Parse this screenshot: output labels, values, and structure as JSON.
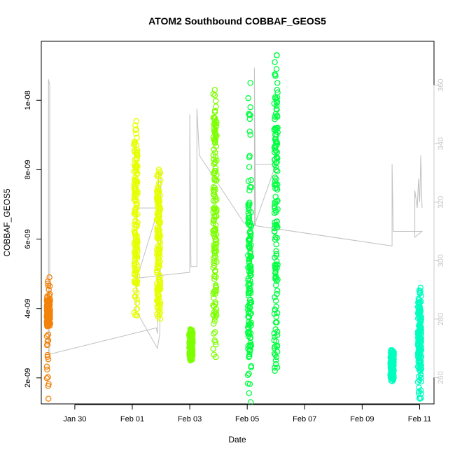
{
  "chart_data": {
    "type": "scatter",
    "title": "ATOM2 Southbound COBBAF_GEOS5",
    "xlabel": "Date",
    "ylabel": "COBBAF_GEOS5",
    "x_unit": "days",
    "x_ticks": [
      {
        "x": "2017-01-30",
        "label": "Jan 30"
      },
      {
        "x": "2017-02-01",
        "label": "Feb 01"
      },
      {
        "x": "2017-02-03",
        "label": "Feb 03"
      },
      {
        "x": "2017-02-05",
        "label": "Feb 05"
      },
      {
        "x": "2017-02-07",
        "label": "Feb 07"
      },
      {
        "x": "2017-02-09",
        "label": "Feb 09"
      },
      {
        "x": "2017-02-11",
        "label": "Feb 11"
      }
    ],
    "xlim": [
      "2017-01-28 20:00",
      "2017-02-11 12:00"
    ],
    "ylim": [
      1.25e-09,
      1.17e-08
    ],
    "y_ticks": [
      {
        "value": 2e-09,
        "label": "2e-09"
      },
      {
        "value": 4e-09,
        "label": "4e-09"
      },
      {
        "value": 6e-09,
        "label": "6e-09"
      },
      {
        "value": 8e-09,
        "label": "8e-09"
      },
      {
        "value": 1e-08,
        "label": "1e-08"
      }
    ],
    "y2lim": [
      251,
      375
    ],
    "y2_ticks": [
      {
        "value": 260,
        "label": "260"
      },
      {
        "value": 280,
        "label": "280"
      },
      {
        "value": 300,
        "label": "300"
      },
      {
        "value": 320,
        "label": "320"
      },
      {
        "value": 340,
        "label": "340"
      },
      {
        "value": 360,
        "label": "360"
      }
    ],
    "grid": false,
    "series": [
      {
        "color": "#f2820a",
        "segments": [
          {
            "x": "2017-01-29 02:00",
            "ymin": 1.4e-09,
            "ymax": 4.9e-09,
            "core_min": 3.5e-09,
            "core_max": 4.3e-09
          }
        ]
      },
      {
        "color": "#e6ff00",
        "segments": [
          {
            "x": "2017-02-01 03:00",
            "ymin": 3.8e-09,
            "ymax": 9.4e-09,
            "core_min": 4.7e-09,
            "core_max": 8.8e-09
          },
          {
            "x": "2017-02-01 22:00",
            "ymin": 3.7e-09,
            "ymax": 8e-09,
            "core_min": 4e-09,
            "core_max": 7.5e-09
          }
        ]
      },
      {
        "color": "#7dff00",
        "segments": [
          {
            "x": "2017-02-03 01:00",
            "ymin": 2.5e-09,
            "ymax": 3.4e-09,
            "core_min": 2.6e-09,
            "core_max": 3.3e-09
          },
          {
            "x": "2017-02-03 21:00",
            "ymin": 2.6e-09,
            "ymax": 1.03e-08,
            "core_min": 3.8e-09,
            "core_max": 9.5e-09
          }
        ]
      },
      {
        "color": "#00ff40",
        "segments": [
          {
            "x": "2017-02-05 02:00",
            "ymin": 1.3e-09,
            "ymax": 1.05e-08,
            "core_min": 2.6e-09,
            "core_max": 7e-09
          },
          {
            "x": "2017-02-06 00:00",
            "ymin": 2.2e-09,
            "ymax": 1.13e-08,
            "core_min": 2.7e-09,
            "core_max": 1.03e-08
          }
        ]
      },
      {
        "color": "#00ffbf",
        "segments": [
          {
            "x": "2017-02-10 01:00",
            "ymin": 1.9e-09,
            "ymax": 2.8e-09,
            "core_min": 2e-09,
            "core_max": 2.7e-09
          },
          {
            "x": "2017-02-11 00:00",
            "ymin": 1.4e-09,
            "ymax": 4.6e-09,
            "core_min": 2.2e-09,
            "core_max": 4.2e-09
          }
        ]
      }
    ],
    "secondary_trace": {
      "color": "#c0c0c0",
      "axis": "right",
      "points": [
        {
          "x": "2017-01-29 02:00",
          "y": 268
        },
        {
          "x": "2017-01-29 02:00",
          "y": 362
        },
        {
          "x": "2017-01-29 03:00",
          "y": 360
        },
        {
          "x": "2017-01-29 03:00",
          "y": 268
        },
        {
          "x": "2017-02-01 20:00",
          "y": 277
        },
        {
          "x": "2017-02-01 21:00",
          "y": 275
        },
        {
          "x": "2017-02-01 22:00",
          "y": 330
        },
        {
          "x": "2017-02-02 00:00",
          "y": 330
        },
        {
          "x": "2017-02-01 23:00",
          "y": 275
        },
        {
          "x": "2017-02-01 21:00",
          "y": 270
        },
        {
          "x": "2017-02-01 03:00",
          "y": 283
        },
        {
          "x": "2017-02-01 04:00",
          "y": 318
        },
        {
          "x": "2017-02-01 22:00",
          "y": 318
        },
        {
          "x": "2017-02-01 04:00",
          "y": 294
        },
        {
          "x": "2017-02-03 00:00",
          "y": 296
        },
        {
          "x": "2017-02-03 00:00",
          "y": 350
        },
        {
          "x": "2017-02-03 01:00",
          "y": 298
        },
        {
          "x": "2017-02-03 06:00",
          "y": 298
        },
        {
          "x": "2017-02-03 06:00",
          "y": 352
        },
        {
          "x": "2017-02-03 08:00",
          "y": 336
        },
        {
          "x": "2017-02-04 21:00",
          "y": 313
        },
        {
          "x": "2017-02-05 06:00",
          "y": 312
        },
        {
          "x": "2017-02-05 06:00",
          "y": 366
        },
        {
          "x": "2017-02-05 07:00",
          "y": 312
        },
        {
          "x": "2017-02-05 06:00",
          "y": 333
        },
        {
          "x": "2017-02-06 00:00",
          "y": 333
        },
        {
          "x": "2017-02-05 06:00",
          "y": 312
        },
        {
          "x": "2017-02-10 01:00",
          "y": 305
        },
        {
          "x": "2017-02-10 01:00",
          "y": 333
        },
        {
          "x": "2017-02-10 02:00",
          "y": 310
        },
        {
          "x": "2017-02-11 02:00",
          "y": 310
        },
        {
          "x": "2017-02-10 20:00",
          "y": 308
        },
        {
          "x": "2017-02-10 20:00",
          "y": 324
        },
        {
          "x": "2017-02-10 22:00",
          "y": 318
        },
        {
          "x": "2017-02-10 23:00",
          "y": 328
        },
        {
          "x": "2017-02-11 00:00",
          "y": 320
        },
        {
          "x": "2017-02-11 01:00",
          "y": 336
        },
        {
          "x": "2017-02-11 02:00",
          "y": 318
        }
      ]
    }
  }
}
